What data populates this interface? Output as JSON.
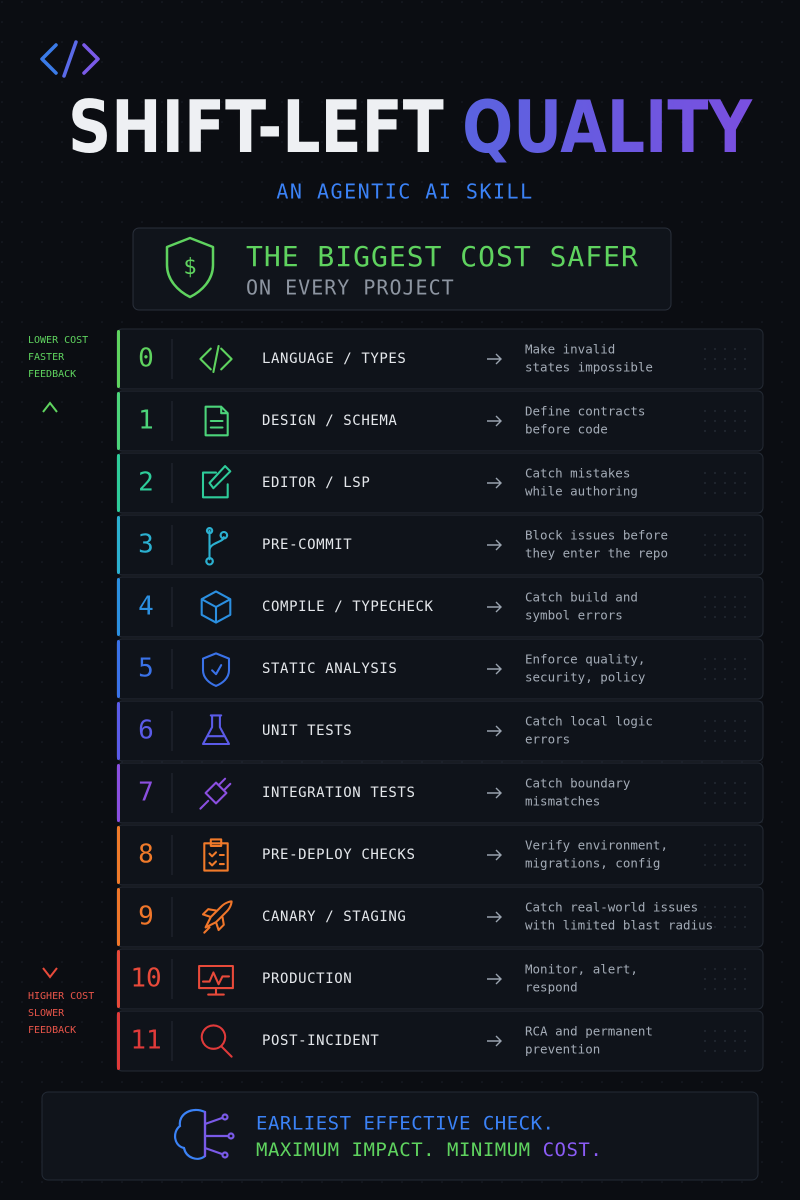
{
  "header": {
    "title": [
      "SHIFT-LEFT",
      "QUALITY"
    ],
    "subtitle": "AN AGENTIC AI SKILL"
  },
  "banner": {
    "line1": "THE BIGGEST COST SAFER",
    "line2": "ON EVERY PROJECT"
  },
  "axis": {
    "top": [
      "LOWER COST",
      "FASTER",
      "FEEDBACK"
    ],
    "bottom": [
      "HIGHER COST",
      "SLOWER",
      "FEEDBACK"
    ]
  },
  "rows": [
    {
      "number": "0",
      "label": "LANGUAGE / TYPES",
      "description": [
        "Make invalid",
        "states impossible"
      ],
      "color": "#5fd35f"
    },
    {
      "number": "1",
      "label": "DESIGN / SCHEMA",
      "description": [
        "Define contracts",
        "before code"
      ],
      "color": "#4cd47a"
    },
    {
      "number": "2",
      "label": "EDITOR / LSP",
      "description": [
        "Catch mistakes",
        "while authoring"
      ],
      "color": "#2ecc9a"
    },
    {
      "number": "3",
      "label": "PRE-COMMIT",
      "description": [
        "Block issues before",
        "they enter the repo"
      ],
      "color": "#2bb0d0"
    },
    {
      "number": "4",
      "label": "COMPILE / TYPECHECK",
      "description": [
        "Catch build and",
        "symbol errors"
      ],
      "color": "#2b8fe0"
    },
    {
      "number": "5",
      "label": "STATIC ANALYSIS",
      "description": [
        "Enforce quality,",
        "security, policy"
      ],
      "color": "#3a72e8"
    },
    {
      "number": "6",
      "label": "UNIT TESTS",
      "description": [
        "Catch local logic",
        "errors"
      ],
      "color": "#5b5be8"
    },
    {
      "number": "7",
      "label": "INTEGRATION TESTS",
      "description": [
        "Catch boundary",
        "mismatches"
      ],
      "color": "#8b4fe0"
    },
    {
      "number": "8",
      "label": "PRE-DEPLOY CHECKS",
      "description": [
        "Verify environment,",
        "migrations, config"
      ],
      "color": "#f07a2a"
    },
    {
      "number": "9",
      "label": "CANARY / STAGING",
      "description": [
        "Catch real-world issues",
        "with limited blast radius"
      ],
      "color": "#f0762a"
    },
    {
      "number": "10",
      "label": "PRODUCTION",
      "description": [
        "Monitor, alert,",
        "respond"
      ],
      "color": "#e84a3a"
    },
    {
      "number": "11",
      "label": "POST-INCIDENT",
      "description": [
        "RCA and permanent",
        "prevention"
      ],
      "color": "#e03a3a"
    }
  ],
  "footer": {
    "line1": "EARLIEST EFFECTIVE CHECK.",
    "line2": [
      "MAXIMUM IMPACT. MINIMUM",
      "COST."
    ]
  }
}
